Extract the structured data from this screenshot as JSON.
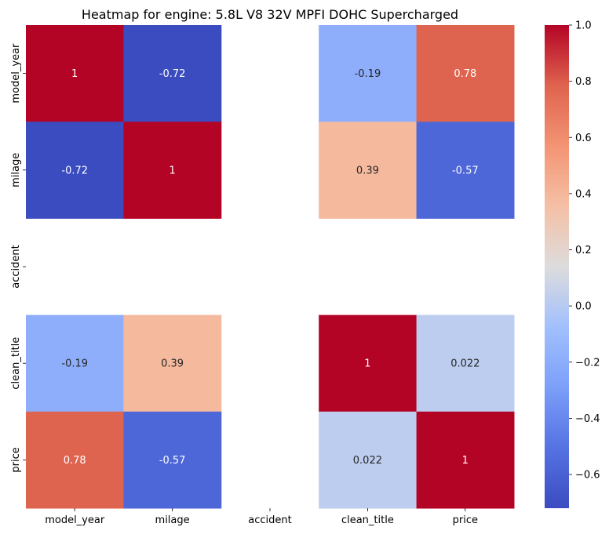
{
  "chart_data": {
    "type": "heatmap",
    "title": "Heatmap for engine: 5.8L V8 32V MPFI DOHC Supercharged",
    "xlabel": "",
    "ylabel": "",
    "x_categories": [
      "model_year",
      "milage",
      "accident",
      "clean_title",
      "price"
    ],
    "y_categories": [
      "model_year",
      "milage",
      "accident",
      "clean_title",
      "price"
    ],
    "values": [
      [
        1,
        -0.72,
        null,
        -0.19,
        0.78
      ],
      [
        -0.72,
        1,
        null,
        0.39,
        -0.57
      ],
      [
        null,
        null,
        null,
        null,
        null
      ],
      [
        -0.19,
        0.39,
        null,
        1,
        0.022
      ],
      [
        0.78,
        -0.57,
        null,
        0.022,
        1
      ]
    ],
    "annotations": [
      [
        "1",
        "-0.72",
        "",
        "-0.19",
        "0.78"
      ],
      [
        "-0.72",
        "1",
        "",
        "0.39",
        "-0.57"
      ],
      [
        "",
        "",
        "",
        "",
        ""
      ],
      [
        "-0.19",
        "0.39",
        "",
        "1",
        "0.022"
      ],
      [
        "0.78",
        "-0.57",
        "",
        "0.022",
        "1"
      ]
    ],
    "colormap": "coolwarm",
    "colorbar": {
      "vmin": -0.72,
      "vmax": 1.0,
      "ticks": [
        1.0,
        0.8,
        0.6,
        0.4,
        0.2,
        0.0,
        -0.2,
        -0.4,
        -0.6
      ],
      "tick_labels": [
        "1.0",
        "0.8",
        "0.6",
        "0.4",
        "0.2",
        "0.0",
        "−0.2",
        "−0.4",
        "−0.6"
      ]
    }
  }
}
